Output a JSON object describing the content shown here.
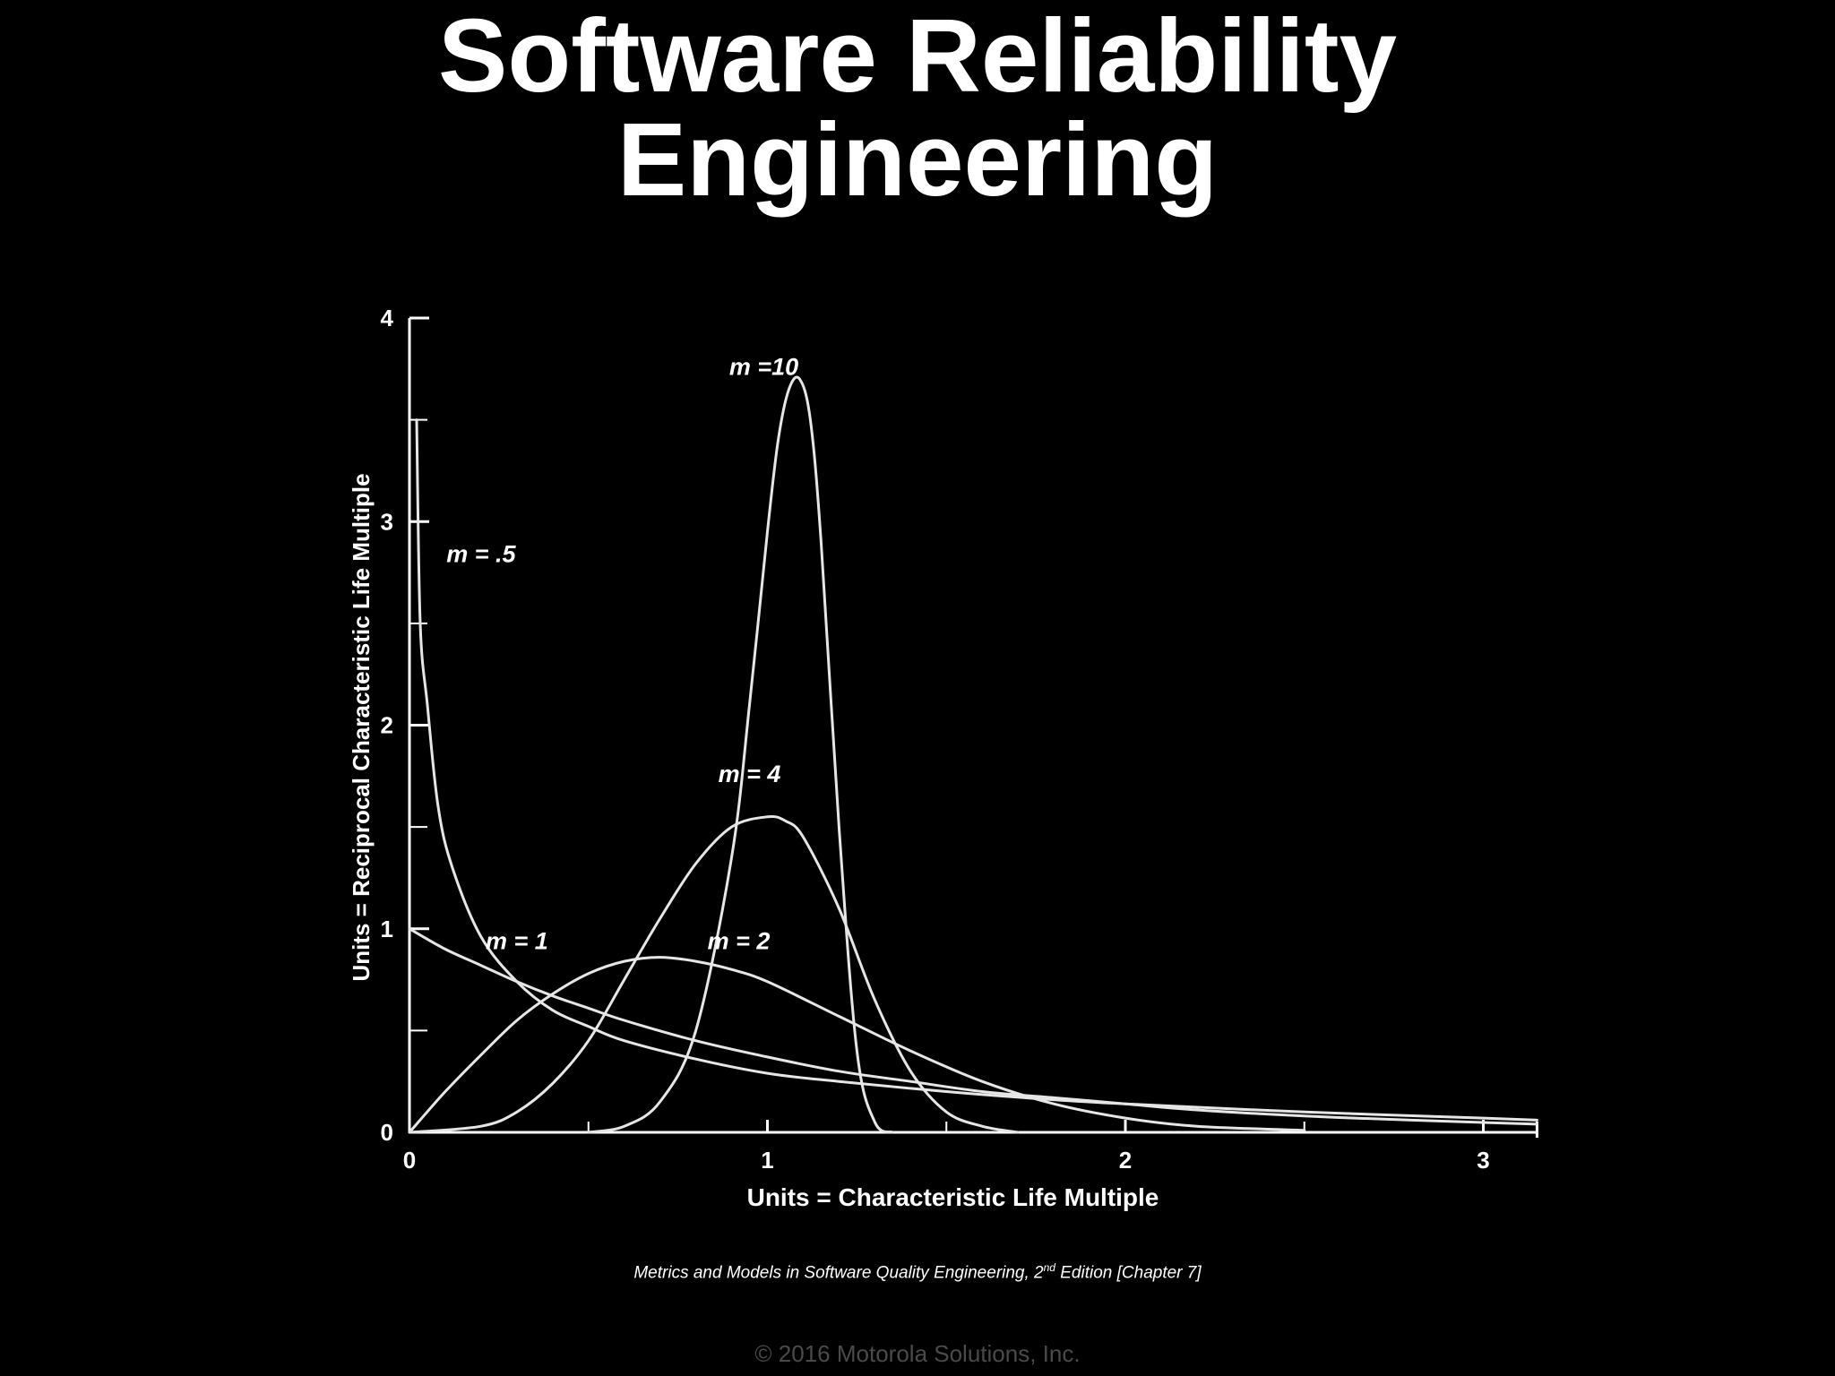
{
  "slide": {
    "title_line1": "Software Reliability",
    "title_line2": "Engineering",
    "citation_prefix": "Metrics and Models in Software Quality Engineering, 2",
    "citation_sup": "nd",
    "citation_suffix": " Edition [Chapter 7]",
    "footer": "© 2016 Motorola Solutions, Inc."
  },
  "colors": {
    "background": "#000000",
    "foreground": "#ffffff",
    "curve": "#e6e6e6",
    "footer": "#4a4a4a"
  },
  "chart_data": {
    "type": "line",
    "title": "",
    "xlabel": "Units = Characteristic Life Multiple",
    "ylabel": "Units = Reciprocal Characteristic Life Multiple",
    "xlim": [
      0,
      3.15
    ],
    "ylim": [
      0,
      4
    ],
    "x_ticks": [
      0,
      1,
      2,
      3
    ],
    "y_ticks": [
      0,
      1,
      2,
      3,
      4
    ],
    "grid": false,
    "legend": "none",
    "series": [
      {
        "name": "m = .5",
        "x": [
          0.02,
          0.03,
          0.05,
          0.08,
          0.12,
          0.2,
          0.3,
          0.4,
          0.5,
          0.6,
          0.8,
          1.0,
          1.2,
          1.5,
          1.8,
          2.0,
          2.5,
          3.0,
          3.15
        ],
        "y": [
          3.5,
          2.5,
          2.1,
          1.6,
          1.3,
          0.96,
          0.74,
          0.6,
          0.52,
          0.45,
          0.36,
          0.29,
          0.25,
          0.2,
          0.16,
          0.14,
          0.1,
          0.07,
          0.06
        ]
      },
      {
        "name": "m = 1",
        "x": [
          0,
          0.1,
          0.2,
          0.3,
          0.4,
          0.5,
          0.6,
          0.8,
          1.0,
          1.2,
          1.4,
          1.6,
          1.8,
          2.0,
          2.2,
          2.5,
          2.8,
          3.15
        ],
        "y": [
          1.0,
          0.9,
          0.82,
          0.74,
          0.67,
          0.61,
          0.55,
          0.45,
          0.37,
          0.3,
          0.25,
          0.2,
          0.17,
          0.14,
          0.11,
          0.08,
          0.06,
          0.04
        ]
      },
      {
        "name": "m = 2",
        "x": [
          0,
          0.1,
          0.2,
          0.3,
          0.4,
          0.5,
          0.6,
          0.7,
          0.8,
          0.9,
          1.0,
          1.2,
          1.4,
          1.6,
          1.8,
          2.0,
          2.2,
          2.5
        ],
        "y": [
          0,
          0.2,
          0.38,
          0.55,
          0.68,
          0.78,
          0.84,
          0.86,
          0.84,
          0.8,
          0.74,
          0.57,
          0.4,
          0.25,
          0.14,
          0.07,
          0.03,
          0.01
        ]
      },
      {
        "name": "m = 4",
        "x": [
          0,
          0.2,
          0.3,
          0.4,
          0.5,
          0.6,
          0.7,
          0.8,
          0.9,
          1.0,
          1.05,
          1.1,
          1.2,
          1.3,
          1.4,
          1.5,
          1.6,
          1.7
        ],
        "y": [
          0,
          0.03,
          0.1,
          0.24,
          0.45,
          0.75,
          1.05,
          1.32,
          1.5,
          1.55,
          1.53,
          1.45,
          1.1,
          0.65,
          0.3,
          0.1,
          0.03,
          0
        ]
      },
      {
        "name": "m = 10",
        "x": [
          0.5,
          0.6,
          0.7,
          0.8,
          0.9,
          0.95,
          1.0,
          1.03,
          1.06,
          1.09,
          1.12,
          1.15,
          1.2,
          1.25,
          1.3,
          1.35
        ],
        "y": [
          0.0,
          0.03,
          0.15,
          0.5,
          1.35,
          2.1,
          2.95,
          3.4,
          3.65,
          3.7,
          3.5,
          2.9,
          1.5,
          0.4,
          0.05,
          0
        ]
      }
    ],
    "annotations": [
      {
        "text": "m = .5",
        "x": 0.2,
        "y": 2.8
      },
      {
        "text": "m = 1",
        "x": 0.3,
        "y": 0.9
      },
      {
        "text": "m = 2",
        "x": 0.92,
        "y": 0.9
      },
      {
        "text": "m = 4",
        "x": 0.95,
        "y": 1.72
      },
      {
        "text": "m =10",
        "x": 0.99,
        "y": 3.72
      }
    ]
  }
}
